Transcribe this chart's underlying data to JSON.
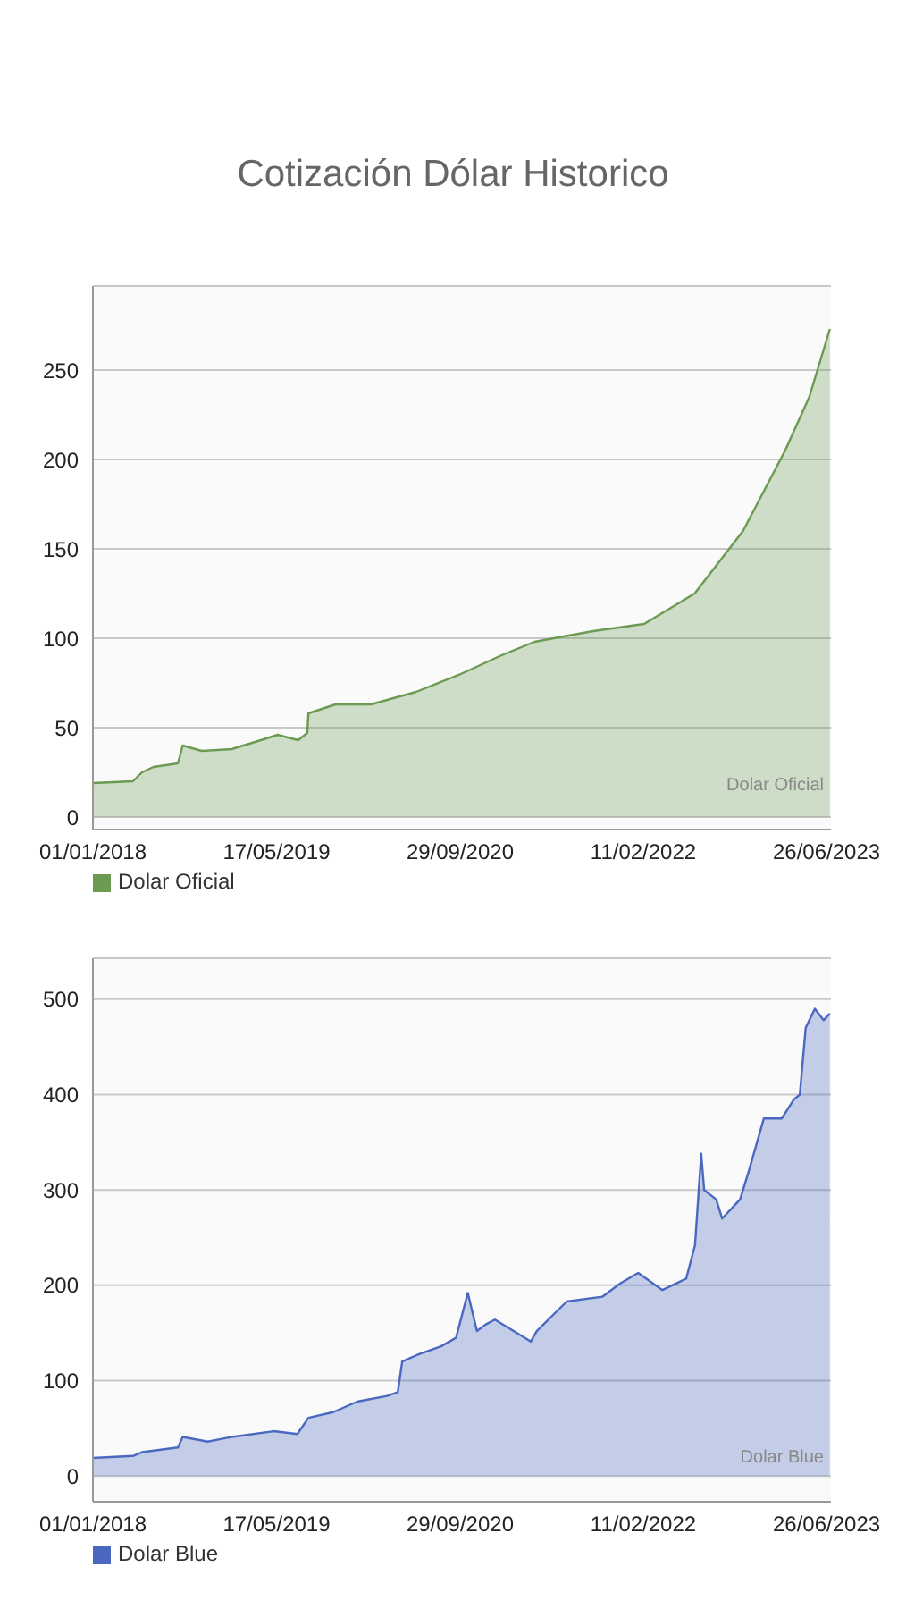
{
  "chart_data": [
    {
      "type": "area",
      "title": "Cotización Dólar Historico",
      "annotations": [
        "Dolar Oficial"
      ],
      "x": [
        "2018-01-01",
        "2018-04-20",
        "2018-05-15",
        "2018-06-15",
        "2018-08-21",
        "2018-09-03",
        "2018-10-25",
        "2019-01-15",
        "2019-04-20",
        "2019-05-20",
        "2019-07-15",
        "2019-08-09",
        "2019-08-12",
        "2019-10-25",
        "2020-01-30",
        "2020-06-01",
        "2020-10-01",
        "2021-01-15",
        "2021-04-20",
        "2021-09-27",
        "2022-02-13",
        "2022-07-01",
        "2022-11-10",
        "2023-03-05",
        "2023-05-10",
        "2023-07-05"
      ],
      "series": [
        {
          "name": "Dolar Oficial",
          "color": "#6b9a52",
          "values": [
            19,
            20,
            25,
            28,
            30,
            40,
            37,
            38,
            44,
            46,
            43,
            47,
            58,
            63,
            63,
            70,
            80,
            90,
            98,
            104,
            108,
            125,
            160,
            205,
            235,
            273
          ]
        }
      ],
      "xlim": [
        "2018-01-01",
        "2023-07-08"
      ],
      "xticks": [
        {
          "value": "2018-01-01",
          "label": "01/01/2018"
        },
        {
          "value": "2019-05-17",
          "label": "17/05/2019"
        },
        {
          "value": "2020-09-29",
          "label": "29/09/2020"
        },
        {
          "value": "2022-02-11",
          "label": "11/02/2022"
        },
        {
          "value": "2023-06-26",
          "label": "26/06/2023"
        }
      ],
      "ylim": [
        -7,
        297
      ],
      "yticks": [
        0,
        50,
        100,
        150,
        200,
        250
      ],
      "grid": "y",
      "legend": "bottom left"
    },
    {
      "type": "area",
      "annotations": [
        "Dolar Blue"
      ],
      "x": [
        "2018-01-01",
        "2018-04-20",
        "2018-05-15",
        "2018-08-21",
        "2018-09-03",
        "2018-11-10",
        "2019-01-15",
        "2019-05-09",
        "2019-07-13",
        "2019-08-12",
        "2019-10-19",
        "2019-12-23",
        "2020-03-14",
        "2020-04-12",
        "2020-04-24",
        "2020-06-04",
        "2020-08-08",
        "2020-09-18",
        "2020-10-20",
        "2020-11-14",
        "2020-12-08",
        "2021-01-02",
        "2021-04-10",
        "2021-04-26",
        "2021-07-17",
        "2021-10-22",
        "2021-12-10",
        "2022-01-28",
        "2022-04-04",
        "2022-06-08",
        "2022-07-02",
        "2022-07-19",
        "2022-07-27",
        "2022-08-29",
        "2022-09-14",
        "2022-11-02",
        "2022-11-26",
        "2023-01-06",
        "2023-02-24",
        "2023-03-29",
        "2023-04-14",
        "2023-04-30",
        "2023-05-25",
        "2023-06-18",
        "2023-07-05"
      ],
      "series": [
        {
          "name": "Dolar Blue",
          "color": "#4a68c0",
          "values": [
            19,
            21,
            25,
            30,
            41,
            36,
            41,
            47,
            44,
            61,
            67,
            78,
            84,
            88,
            120,
            127,
            136,
            145,
            192,
            152,
            159,
            164,
            141,
            152,
            183,
            188,
            202,
            213,
            195,
            207,
            242,
            338,
            300,
            290,
            270,
            290,
            320,
            375,
            375,
            395,
            400,
            470,
            490,
            478,
            485
          ]
        }
      ],
      "xlim": [
        "2018-01-01",
        "2023-07-08"
      ],
      "xticks": [
        {
          "value": "2018-01-01",
          "label": "01/01/2018"
        },
        {
          "value": "2019-05-17",
          "label": "17/05/2019"
        },
        {
          "value": "2020-09-29",
          "label": "29/09/2020"
        },
        {
          "value": "2022-02-11",
          "label": "11/02/2022"
        },
        {
          "value": "2023-06-26",
          "label": "26/06/2023"
        }
      ],
      "ylim": [
        -27,
        543
      ],
      "yticks": [
        0,
        100,
        200,
        300,
        400,
        500
      ],
      "grid": "y",
      "legend": "bottom left"
    }
  ]
}
